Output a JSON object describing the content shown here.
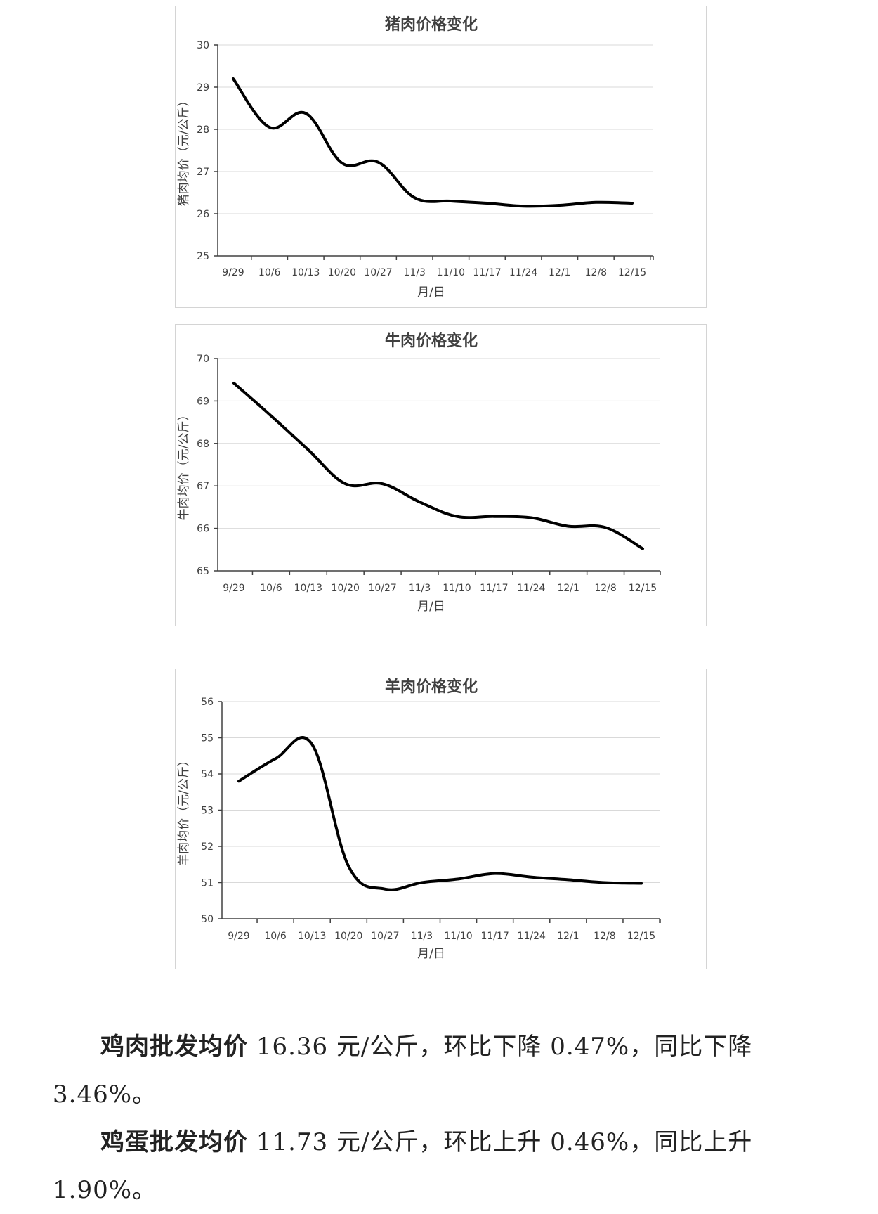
{
  "chart_data": [
    {
      "type": "line",
      "title": "猪肉价格变化",
      "xlabel": "月/日",
      "ylabel": "猪肉均价（元/公斤）",
      "categories": [
        "9/29",
        "10/6",
        "10/13",
        "10/20",
        "10/27",
        "11/3",
        "11/10",
        "11/17",
        "11/24",
        "12/1",
        "12/8",
        "12/15"
      ],
      "yticks": [
        25,
        26,
        27,
        28,
        29,
        30
      ],
      "ylim": [
        25,
        30
      ],
      "grid": true,
      "series": [
        {
          "values": [
            29.2,
            28.05,
            28.38,
            27.2,
            27.22,
            26.38,
            26.3,
            26.25,
            26.18,
            26.2,
            26.27,
            26.25
          ]
        }
      ]
    },
    {
      "type": "line",
      "title": "牛肉价格变化",
      "xlabel": "月/日",
      "ylabel": "牛肉均价（元/公斤）",
      "categories": [
        "9/29",
        "10/6",
        "10/13",
        "10/20",
        "10/27",
        "11/3",
        "11/10",
        "11/17",
        "11/24",
        "12/1",
        "12/8",
        "12/15"
      ],
      "yticks": [
        65,
        66,
        67,
        68,
        69,
        70
      ],
      "ylim": [
        65,
        70
      ],
      "grid": true,
      "series": [
        {
          "values": [
            69.42,
            68.65,
            67.85,
            67.05,
            67.05,
            66.62,
            66.28,
            66.28,
            66.25,
            66.05,
            66.02,
            65.52
          ]
        }
      ]
    },
    {
      "type": "line",
      "title": "羊肉价格变化",
      "xlabel": "月/日",
      "ylabel": "羊肉均价（元/公斤）",
      "categories": [
        "9/29",
        "10/6",
        "10/13",
        "10/20",
        "10/27",
        "11/3",
        "11/10",
        "11/17",
        "11/24",
        "12/1",
        "12/8",
        "12/15"
      ],
      "yticks": [
        50,
        51,
        52,
        53,
        54,
        55,
        56
      ],
      "ylim": [
        50,
        56
      ],
      "grid": true,
      "series": [
        {
          "values": [
            53.8,
            54.42,
            54.82,
            51.45,
            50.82,
            51.0,
            51.1,
            51.25,
            51.15,
            51.08,
            51.0,
            50.98
          ]
        }
      ]
    }
  ],
  "text": {
    "chicken_lead": "鸡肉批发均价",
    "chicken_body": " 16.36 元/公斤，环比下降 0.47%，同比下降 3.46%。",
    "egg_lead": "鸡蛋批发均价",
    "egg_body": " 11.73 元/公斤，环比上升 0.46%，同比上升 1.90%。"
  }
}
